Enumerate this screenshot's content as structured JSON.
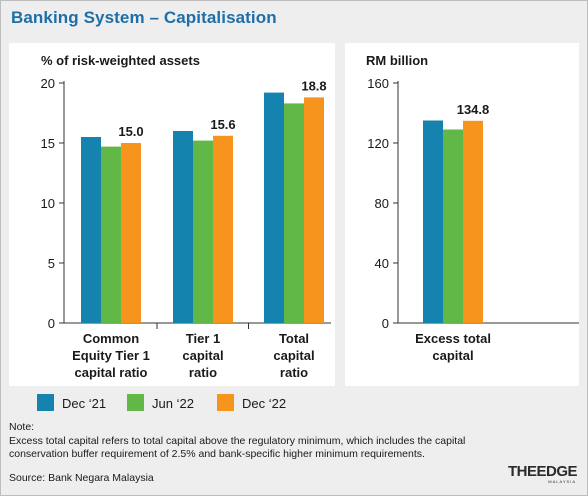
{
  "title": "Banking System – Capitalisation",
  "note": {
    "heading": "Note:",
    "text": "Excess total capital refers to total capital above the regulatory minimum, which includes the capital conservation buffer requirement of 2.5% and bank-specific higher minimum requirements."
  },
  "source": "Source: Bank Negara Malaysia",
  "logo": {
    "main": "THEEDGE",
    "sub": "MALAYSIA"
  },
  "colors": {
    "Dec ‘21": "#1483ad",
    "Jun ‘22": "#62b846",
    "Dec ‘22": "#f7941d"
  },
  "legend": [
    "Dec ‘21",
    "Jun ‘22",
    "Dec ‘22"
  ],
  "chart_data": [
    {
      "type": "bar",
      "ylabel": "% of risk-weighted assets",
      "ylim": [
        0,
        20
      ],
      "yticks": [
        0,
        5,
        10,
        15,
        20
      ],
      "categories": [
        [
          "Common",
          "Equity Tier 1",
          "capital ratio"
        ],
        [
          "Tier 1",
          "capital",
          "ratio"
        ],
        [
          "Total",
          "capital",
          "ratio"
        ]
      ],
      "series": [
        {
          "name": "Dec ‘21",
          "values": [
            15.5,
            16.0,
            19.2
          ]
        },
        {
          "name": "Jun ‘22",
          "values": [
            14.7,
            15.2,
            18.3
          ]
        },
        {
          "name": "Dec ‘22",
          "values": [
            15.0,
            15.6,
            18.8
          ]
        }
      ],
      "data_labels": [
        "15.0",
        "15.6",
        "18.8"
      ],
      "grid": false,
      "legend_position": "bottom"
    },
    {
      "type": "bar",
      "ylabel": "RM billion",
      "ylim": [
        0,
        160
      ],
      "yticks": [
        0,
        40,
        80,
        120,
        160
      ],
      "categories": [
        [
          "Excess total",
          "capital"
        ]
      ],
      "series": [
        {
          "name": "Dec ‘21",
          "values": [
            135
          ]
        },
        {
          "name": "Jun ‘22",
          "values": [
            129
          ]
        },
        {
          "name": "Dec ‘22",
          "values": [
            134.8
          ]
        }
      ],
      "data_labels": [
        "134.8"
      ],
      "grid": false,
      "legend_position": "bottom"
    }
  ]
}
